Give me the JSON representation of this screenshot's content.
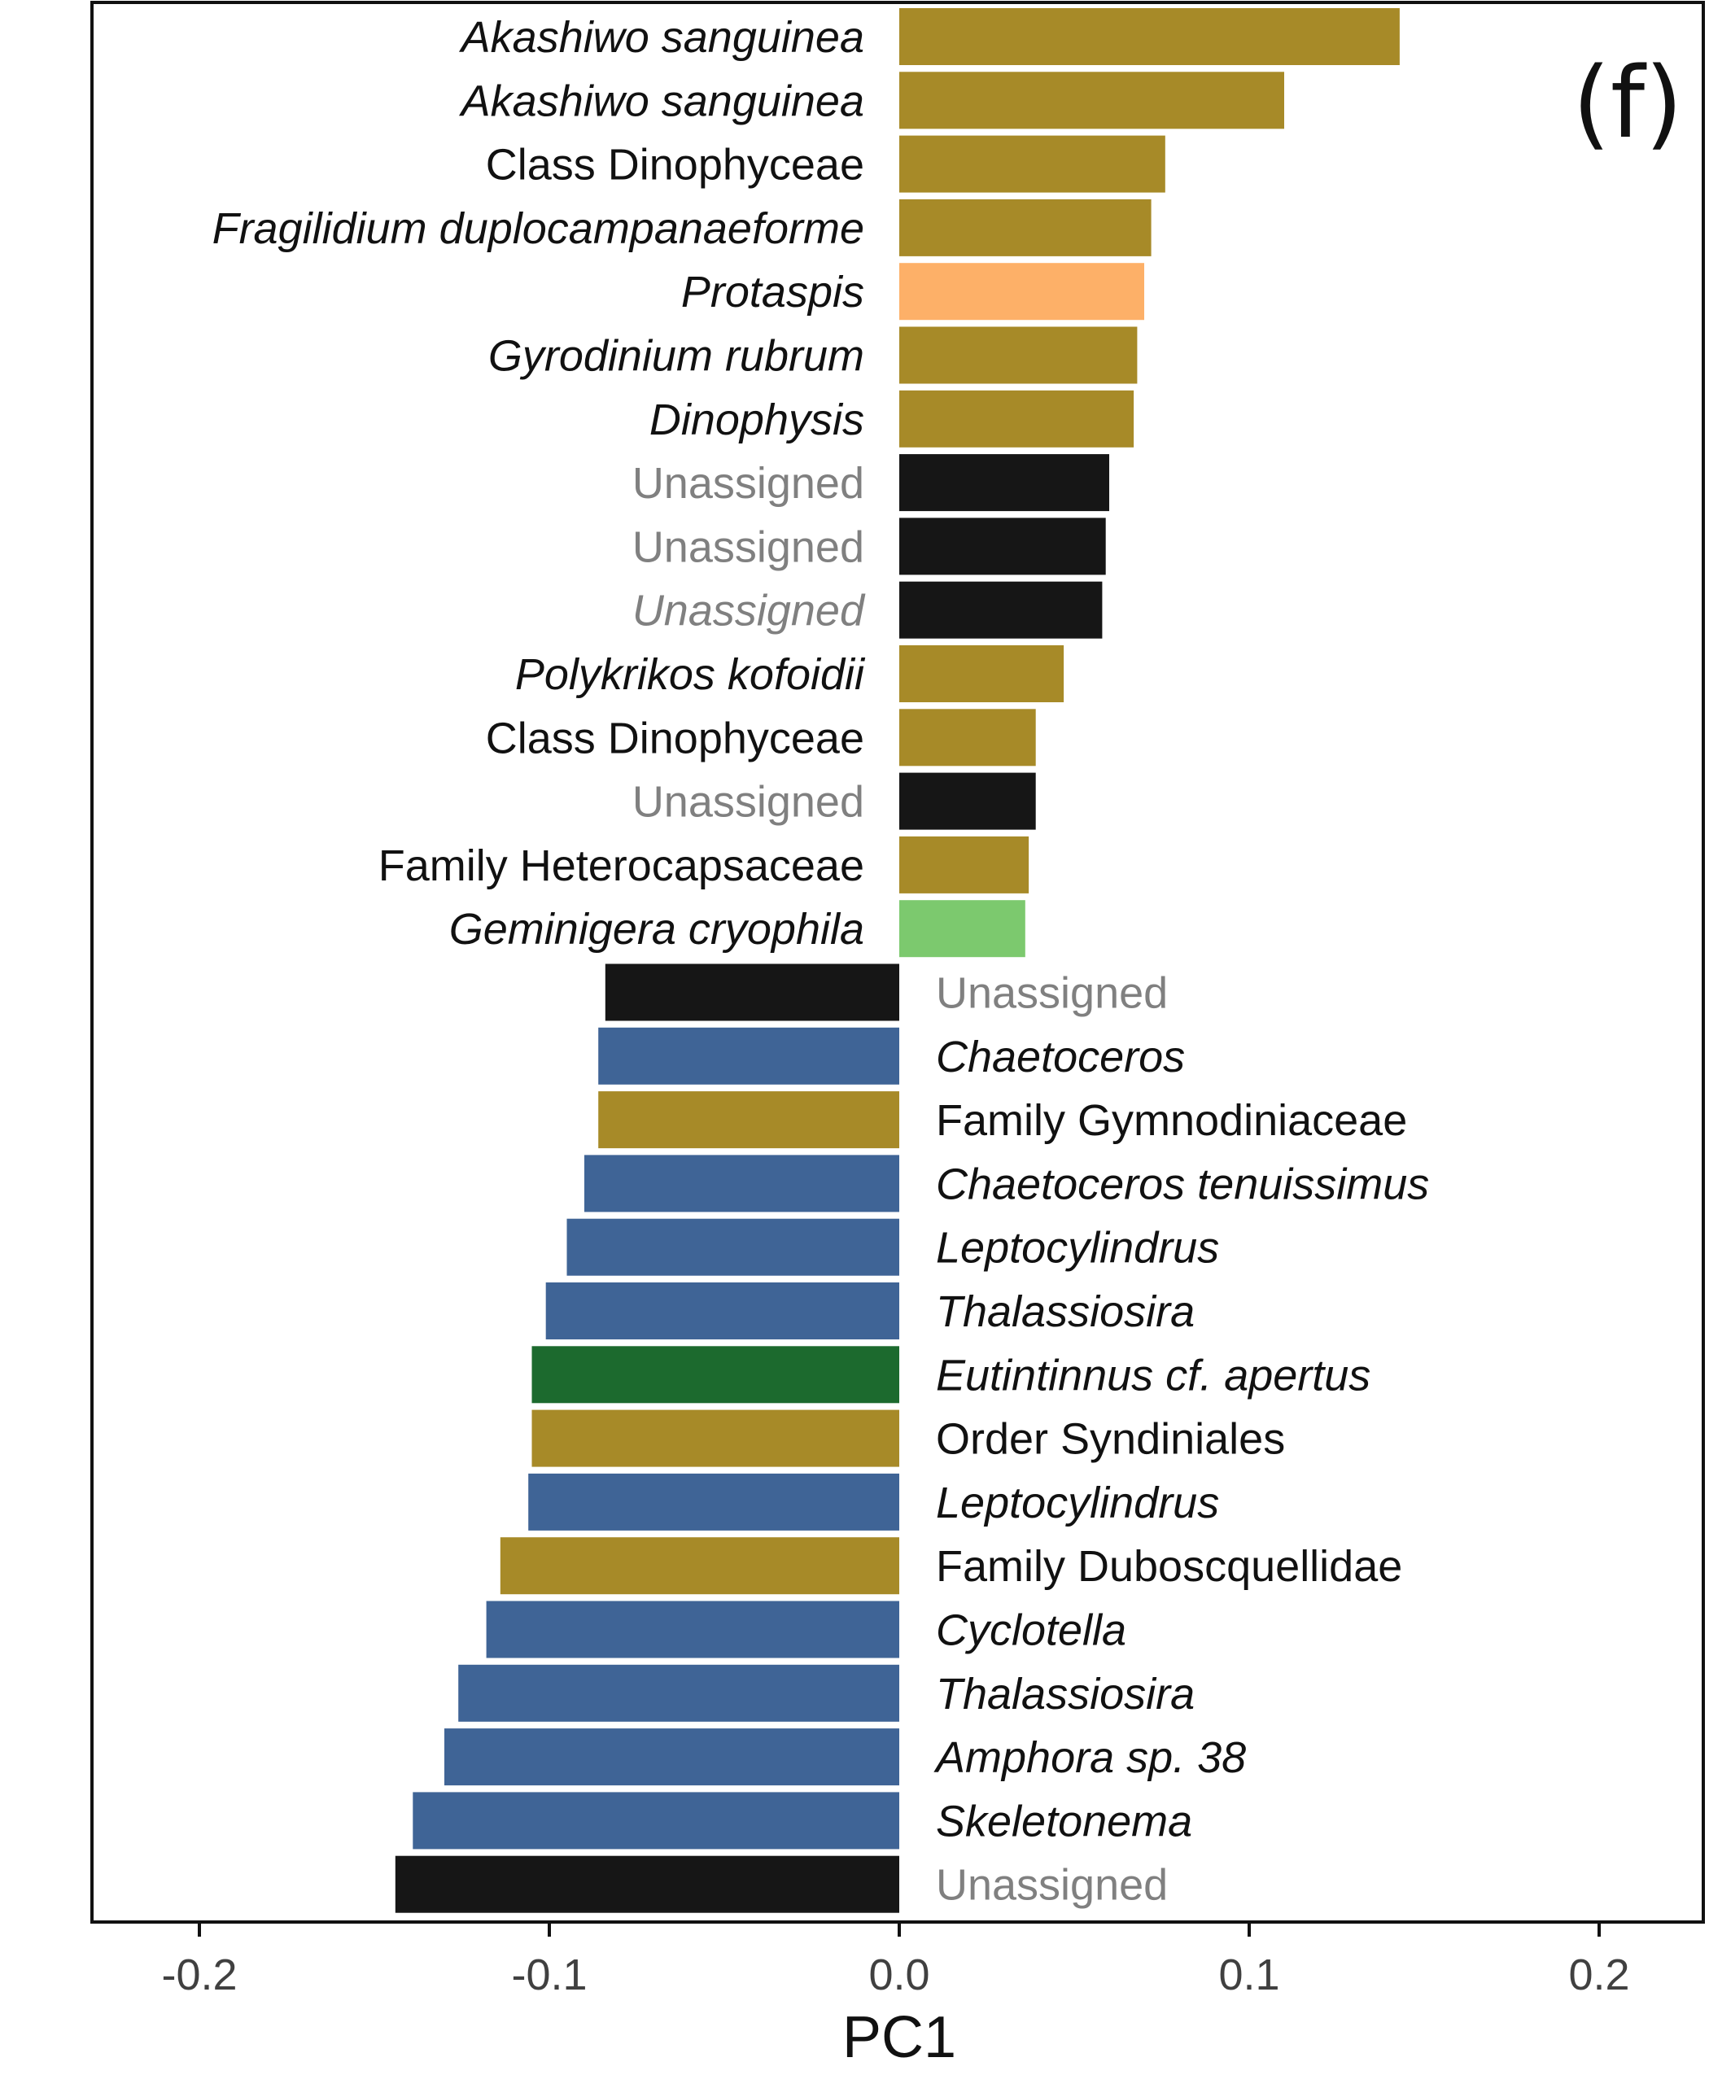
{
  "chart_data": {
    "type": "bar",
    "orientation": "horizontal",
    "panel_label": "(f)",
    "title": "",
    "xlabel": "PC1",
    "ylabel": "",
    "xlim": [
      -0.23,
      0.23
    ],
    "xticks": [
      -0.2,
      -0.1,
      0.0,
      0.1,
      0.2
    ],
    "xtick_labels": [
      "-0.2",
      "-0.1",
      "0.0",
      "0.1",
      "0.2"
    ],
    "grid": false,
    "legend": "none",
    "colors": {
      "dinoflagellate": "#A78A28",
      "orange": "#FDB068",
      "unassigned": "#161616",
      "cryptophyte": "#7CC96E",
      "diatom": "#3F6496",
      "ciliate": "#1C6A2E",
      "label_default": "#111111",
      "label_unassigned": "#808080"
    },
    "bars": [
      {
        "label": "Akashiwo sanguinea",
        "value": 0.143,
        "group": "dinoflagellate",
        "italic": true
      },
      {
        "label": "Akashiwo sanguinea",
        "value": 0.11,
        "group": "dinoflagellate",
        "italic": true
      },
      {
        "label": "Class Dinophyceae",
        "value": 0.076,
        "group": "dinoflagellate",
        "italic": false
      },
      {
        "label": "Fragilidium duplocampanaeforme",
        "value": 0.072,
        "group": "dinoflagellate",
        "italic": true
      },
      {
        "label": "Protaspis",
        "value": 0.07,
        "group": "orange",
        "italic": true
      },
      {
        "label": "Gyrodinium rubrum",
        "value": 0.068,
        "group": "dinoflagellate",
        "italic": true
      },
      {
        "label": "Dinophysis",
        "value": 0.067,
        "group": "dinoflagellate",
        "italic": true
      },
      {
        "label": "Unassigned",
        "value": 0.06,
        "group": "unassigned",
        "italic": false
      },
      {
        "label": "Unassigned",
        "value": 0.059,
        "group": "unassigned",
        "italic": false
      },
      {
        "label": "Unassigned",
        "value": 0.058,
        "group": "unassigned",
        "italic": true
      },
      {
        "label": "Polykrikos kofoidii",
        "value": 0.047,
        "group": "dinoflagellate",
        "italic": true
      },
      {
        "label": "Class Dinophyceae",
        "value": 0.039,
        "group": "dinoflagellate",
        "italic": false
      },
      {
        "label": "Unassigned",
        "value": 0.039,
        "group": "unassigned",
        "italic": false
      },
      {
        "label": "Family Heterocapsaceae",
        "value": 0.037,
        "group": "dinoflagellate",
        "italic": false
      },
      {
        "label": "Geminigera cryophila",
        "value": 0.036,
        "group": "cryptophyte",
        "italic": true
      },
      {
        "label": "Unassigned",
        "value": -0.084,
        "group": "unassigned",
        "italic": false
      },
      {
        "label": "Chaetoceros",
        "value": -0.086,
        "group": "diatom",
        "italic": true
      },
      {
        "label": "Family Gymnodiniaceae",
        "value": -0.086,
        "group": "dinoflagellate",
        "italic": false
      },
      {
        "label": "Chaetoceros tenuissimus",
        "value": -0.09,
        "group": "diatom",
        "italic": true
      },
      {
        "label": "Leptocylindrus",
        "value": -0.095,
        "group": "diatom",
        "italic": true
      },
      {
        "label": "Thalassiosira",
        "value": -0.101,
        "group": "diatom",
        "italic": true
      },
      {
        "label": "Eutintinnus cf. apertus",
        "value": -0.105,
        "group": "ciliate",
        "italic": true
      },
      {
        "label": "Order Syndiniales",
        "value": -0.105,
        "group": "dinoflagellate",
        "italic": false
      },
      {
        "label": "Leptocylindrus",
        "value": -0.106,
        "group": "diatom",
        "italic": true
      },
      {
        "label": "Family Duboscquellidae",
        "value": -0.114,
        "group": "dinoflagellate",
        "italic": false
      },
      {
        "label": "Cyclotella",
        "value": -0.118,
        "group": "diatom",
        "italic": true
      },
      {
        "label": "Thalassiosira",
        "value": -0.126,
        "group": "diatom",
        "italic": true
      },
      {
        "label": "Amphora sp. 38",
        "value": -0.13,
        "group": "diatom",
        "italic": true
      },
      {
        "label": "Skeletonema",
        "value": -0.139,
        "group": "diatom",
        "italic": true
      },
      {
        "label": "Unassigned",
        "value": -0.144,
        "group": "unassigned",
        "italic": false
      }
    ]
  }
}
